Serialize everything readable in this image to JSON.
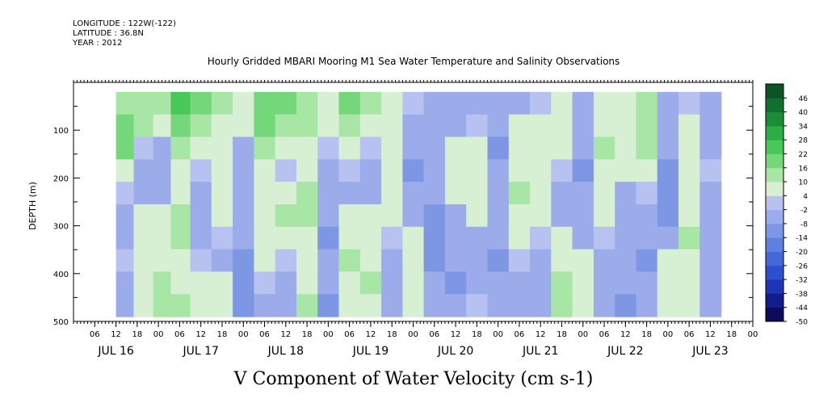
{
  "header": {
    "longitude": "LONGITUDE : 122W(-122)",
    "latitude": "LATITUDE : 36.8N",
    "year": "YEAR : 2012"
  },
  "chart_data": {
    "type": "heatmap",
    "title": "Hourly Gridded MBARI Mooring M1 Sea Water Temperature and Salinity Observations",
    "xlabel": "",
    "ylabel": "DEPTH (m)",
    "footer_label": "V Component of Water Velocity (cm s-1)",
    "x_hours_range": [
      0,
      192
    ],
    "data_x_hours_range": [
      12,
      183
    ],
    "ylim": [
      500,
      0
    ],
    "data_depth_range": [
      20,
      490
    ],
    "y_ticks": [
      100,
      200,
      300,
      400,
      500
    ],
    "x_hour_ticks": [
      {
        "h": 6,
        "label": "06"
      },
      {
        "h": 12,
        "label": "12"
      },
      {
        "h": 18,
        "label": "18"
      },
      {
        "h": 24,
        "label": "00"
      },
      {
        "h": 30,
        "label": "06"
      },
      {
        "h": 36,
        "label": "12"
      },
      {
        "h": 42,
        "label": "18"
      },
      {
        "h": 48,
        "label": "00"
      },
      {
        "h": 54,
        "label": "06"
      },
      {
        "h": 60,
        "label": "12"
      },
      {
        "h": 66,
        "label": "18"
      },
      {
        "h": 72,
        "label": "00"
      },
      {
        "h": 78,
        "label": "06"
      },
      {
        "h": 84,
        "label": "12"
      },
      {
        "h": 90,
        "label": "18"
      },
      {
        "h": 96,
        "label": "00"
      },
      {
        "h": 102,
        "label": "06"
      },
      {
        "h": 108,
        "label": "12"
      },
      {
        "h": 114,
        "label": "18"
      },
      {
        "h": 120,
        "label": "00"
      },
      {
        "h": 126,
        "label": "06"
      },
      {
        "h": 132,
        "label": "12"
      },
      {
        "h": 138,
        "label": "18"
      },
      {
        "h": 144,
        "label": "00"
      },
      {
        "h": 150,
        "label": "06"
      },
      {
        "h": 156,
        "label": "12"
      },
      {
        "h": 162,
        "label": "18"
      },
      {
        "h": 168,
        "label": "00"
      },
      {
        "h": 174,
        "label": "06"
      },
      {
        "h": 180,
        "label": "12"
      },
      {
        "h": 186,
        "label": "18"
      },
      {
        "h": 192,
        "label": "00"
      }
    ],
    "day_labels": [
      {
        "h": 12,
        "label": "JUL 16"
      },
      {
        "h": 36,
        "label": "JUL 17"
      },
      {
        "h": 60,
        "label": "JUL 18"
      },
      {
        "h": 84,
        "label": "JUL 19"
      },
      {
        "h": 108,
        "label": "JUL 20"
      },
      {
        "h": 132,
        "label": "JUL 21"
      },
      {
        "h": 156,
        "label": "JUL 22"
      },
      {
        "h": 180,
        "label": "JUL 23"
      }
    ],
    "colorbar": {
      "levels": [
        -50,
        -44,
        -38,
        -32,
        -26,
        -20,
        -14,
        -8,
        -2,
        4,
        10,
        16,
        22,
        28,
        34,
        40,
        46
      ],
      "level_labels": [
        "-50",
        "-44",
        "-38",
        "-32",
        "-26",
        "-20",
        "-14",
        "-8",
        "-2",
        "4",
        "10",
        "16",
        "22",
        "28",
        "34",
        "40",
        "46"
      ],
      "colors": [
        "#0b0b5a",
        "#121d8c",
        "#1c34b6",
        "#2c4fd0",
        "#4568d8",
        "#5f80de",
        "#7e97e4",
        "#9caceb",
        "#b8c2f0",
        "#d7f0d4",
        "#a8e6a6",
        "#74d77a",
        "#47c857",
        "#2aae45",
        "#1a8d38",
        "#11702e",
        "#0b5424"
      ]
    },
    "columns": [
      {
        "h": 14,
        "v": [
          14,
          16,
          18,
          8,
          -2,
          -4,
          -3,
          -2,
          -6,
          -4
        ]
      },
      {
        "h": 20,
        "v": [
          12,
          10,
          2,
          -4,
          -6,
          6,
          8,
          4,
          6,
          8
        ]
      },
      {
        "h": 25,
        "v": [
          10,
          6,
          -6,
          -8,
          -4,
          4,
          6,
          8,
          10,
          10
        ]
      },
      {
        "h": 30,
        "v": [
          22,
          20,
          14,
          6,
          8,
          10,
          12,
          8,
          6,
          12
        ]
      },
      {
        "h": 36,
        "v": [
          16,
          12,
          6,
          -2,
          -6,
          -8,
          -6,
          2,
          4,
          6
        ]
      },
      {
        "h": 42,
        "v": [
          12,
          8,
          4,
          6,
          8,
          4,
          -2,
          -4,
          6,
          8
        ]
      },
      {
        "h": 48,
        "v": [
          6,
          4,
          -4,
          -6,
          -8,
          -6,
          -8,
          -10,
          -12,
          -10
        ]
      },
      {
        "h": 54,
        "v": [
          18,
          16,
          10,
          6,
          4,
          6,
          8,
          4,
          -2,
          -4
        ]
      },
      {
        "h": 60,
        "v": [
          20,
          14,
          6,
          2,
          8,
          10,
          6,
          2,
          -4,
          -6
        ]
      },
      {
        "h": 66,
        "v": [
          14,
          10,
          4,
          8,
          12,
          10,
          6,
          4,
          8,
          10
        ]
      },
      {
        "h": 72,
        "v": [
          8,
          6,
          2,
          -4,
          -6,
          -8,
          -10,
          -6,
          -8,
          -12
        ]
      },
      {
        "h": 78,
        "v": [
          16,
          14,
          8,
          2,
          -4,
          6,
          8,
          10,
          6,
          4
        ]
      },
      {
        "h": 84,
        "v": [
          10,
          6,
          -2,
          -6,
          -8,
          4,
          6,
          8,
          10,
          8
        ]
      },
      {
        "h": 90,
        "v": [
          4,
          6,
          4,
          8,
          6,
          4,
          -2,
          -4,
          -6,
          -8
        ]
      },
      {
        "h": 96,
        "v": [
          -2,
          -4,
          -8,
          -10,
          -6,
          -4,
          4,
          6,
          4,
          6
        ]
      },
      {
        "h": 102,
        "v": [
          -6,
          -8,
          -6,
          -4,
          -8,
          -10,
          -12,
          -10,
          -8,
          -6
        ]
      },
      {
        "h": 108,
        "v": [
          -8,
          -6,
          4,
          6,
          4,
          -4,
          -6,
          -8,
          -10,
          -6
        ]
      },
      {
        "h": 114,
        "v": [
          -4,
          -2,
          4,
          6,
          8,
          6,
          -4,
          -6,
          -4,
          -2
        ]
      },
      {
        "h": 120,
        "v": [
          -6,
          -8,
          -10,
          -8,
          -6,
          -4,
          -8,
          -10,
          -6,
          -4
        ]
      },
      {
        "h": 126,
        "v": [
          -4,
          4,
          6,
          8,
          10,
          6,
          4,
          -2,
          -4,
          -6
        ]
      },
      {
        "h": 132,
        "v": [
          -2,
          4,
          6,
          8,
          6,
          4,
          -2,
          -4,
          -6,
          -4
        ]
      },
      {
        "h": 138,
        "v": [
          6,
          8,
          4,
          -2,
          -4,
          -6,
          4,
          8,
          10,
          12
        ]
      },
      {
        "h": 144,
        "v": [
          -4,
          -6,
          -8,
          -10,
          -8,
          -6,
          -4,
          4,
          6,
          4
        ]
      },
      {
        "h": 150,
        "v": [
          6,
          8,
          10,
          8,
          6,
          4,
          -2,
          -6,
          -8,
          -6
        ]
      },
      {
        "h": 156,
        "v": [
          4,
          6,
          8,
          4,
          -4,
          -6,
          -4,
          -6,
          -8,
          -10
        ]
      },
      {
        "h": 162,
        "v": [
          12,
          14,
          10,
          6,
          -2,
          -6,
          -8,
          -10,
          -6,
          -4
        ]
      },
      {
        "h": 168,
        "v": [
          -4,
          -6,
          -8,
          -10,
          -12,
          -10,
          -8,
          4,
          6,
          8
        ]
      },
      {
        "h": 174,
        "v": [
          -2,
          4,
          6,
          8,
          6,
          8,
          10,
          8,
          6,
          4
        ]
      },
      {
        "h": 180,
        "v": [
          -4,
          -6,
          -4,
          -2,
          -6,
          -8,
          -6,
          -4,
          -6,
          -8
        ]
      }
    ],
    "grid": false,
    "legend": "right"
  }
}
